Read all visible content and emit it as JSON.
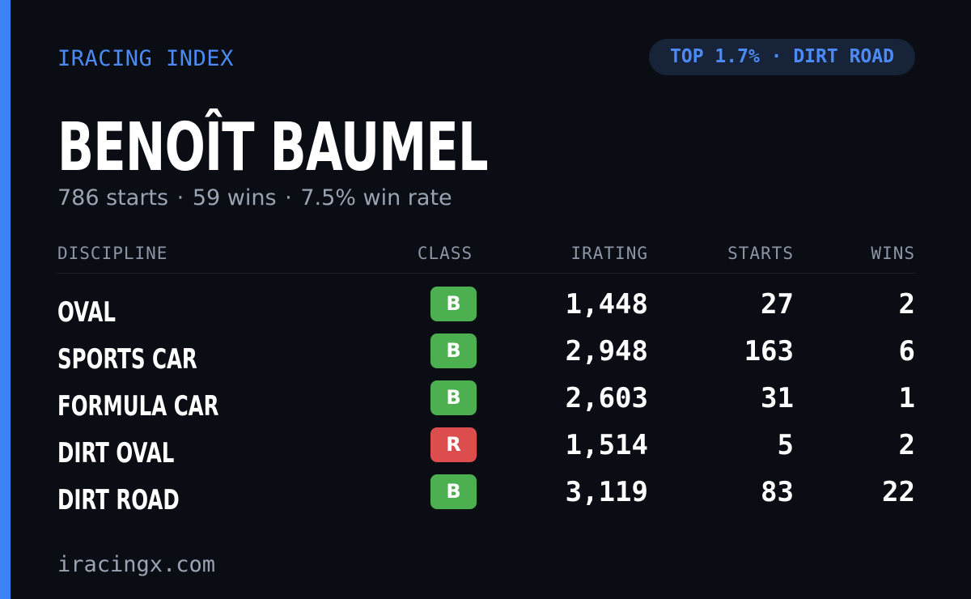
{
  "header": {
    "brand": "IRACING INDEX",
    "badge": "TOP 1.7% · DIRT ROAD"
  },
  "driver": {
    "name": "BENOÎT BAUMEL",
    "summary": {
      "starts": "786 starts",
      "wins": "59 wins",
      "win_rate": "7.5% win rate",
      "separator": "·"
    }
  },
  "table": {
    "headers": {
      "discipline": "DISCIPLINE",
      "class": "CLASS",
      "irating": "IRATING",
      "starts": "STARTS",
      "wins": "WINS"
    },
    "rows": [
      {
        "discipline": "OVAL",
        "class": "B",
        "irating": "1,448",
        "starts": "27",
        "wins": "2"
      },
      {
        "discipline": "SPORTS CAR",
        "class": "B",
        "irating": "2,948",
        "starts": "163",
        "wins": "6"
      },
      {
        "discipline": "FORMULA CAR",
        "class": "B",
        "irating": "2,603",
        "starts": "31",
        "wins": "1"
      },
      {
        "discipline": "DIRT OVAL",
        "class": "R",
        "irating": "1,514",
        "starts": "5",
        "wins": "2"
      },
      {
        "discipline": "DIRT ROAD",
        "class": "B",
        "irating": "3,119",
        "starts": "83",
        "wins": "22"
      }
    ]
  },
  "colors": {
    "accent": "#3b82f6",
    "class_b": "#4caf50",
    "class_r": "#dc4d4d"
  },
  "footer": {
    "site": "iracingx.com"
  }
}
